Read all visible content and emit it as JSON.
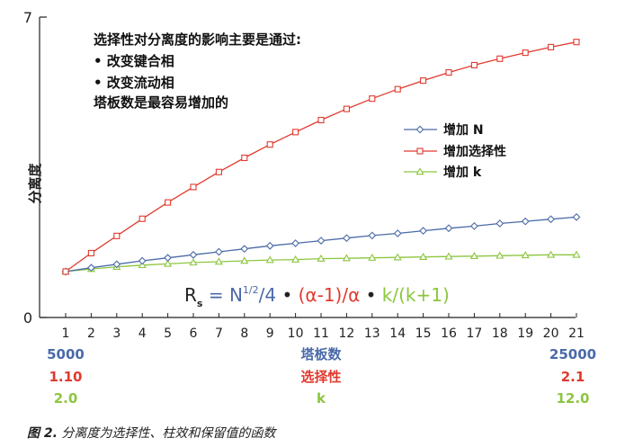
{
  "chart_data": {
    "type": "line",
    "title": "",
    "ylabel": "分离度",
    "ylim": [
      0,
      7
    ],
    "y_ticks": [
      "0",
      "7"
    ],
    "x": [
      1,
      2,
      3,
      4,
      5,
      6,
      7,
      8,
      9,
      10,
      11,
      12,
      13,
      14,
      15,
      16,
      17,
      18,
      19,
      20,
      21
    ],
    "x_tick_labels": [
      "1",
      "2",
      "3",
      "4",
      "5",
      "6",
      "7",
      "8",
      "9",
      "10",
      "11",
      "12",
      "13",
      "14",
      "15",
      "16",
      "17",
      "18",
      "19",
      "20",
      "21"
    ],
    "grid": false,
    "legend_position": "right",
    "series": [
      {
        "name": "增加 N",
        "color": "#4a6aa8",
        "marker": "diamond",
        "values": [
          1.07,
          1.16,
          1.24,
          1.32,
          1.39,
          1.46,
          1.53,
          1.6,
          1.67,
          1.73,
          1.79,
          1.85,
          1.91,
          1.96,
          2.02,
          2.08,
          2.13,
          2.19,
          2.24,
          2.29,
          2.34
        ]
      },
      {
        "name": "增加选择性",
        "color": "#e03a2e",
        "marker": "square",
        "values": [
          1.07,
          1.5,
          1.9,
          2.3,
          2.68,
          3.04,
          3.39,
          3.72,
          4.03,
          4.32,
          4.6,
          4.86,
          5.1,
          5.32,
          5.52,
          5.71,
          5.88,
          6.03,
          6.17,
          6.3,
          6.42
        ]
      },
      {
        "name": "增加 k",
        "color": "#8cc63f",
        "marker": "triangle",
        "values": [
          1.07,
          1.13,
          1.18,
          1.22,
          1.25,
          1.28,
          1.3,
          1.32,
          1.34,
          1.35,
          1.37,
          1.38,
          1.39,
          1.4,
          1.41,
          1.42,
          1.43,
          1.44,
          1.45,
          1.46,
          1.46
        ]
      }
    ],
    "annotation": {
      "lines": [
        "选择性对分离度的影响主要是通过:",
        "•   改变键合相",
        "•   改变流动相",
        "塔板数是最容易增加的"
      ]
    },
    "formula": {
      "r": "R",
      "r_sub": "s",
      "eq": " = ",
      "n": "N",
      "n_sup": "1/2",
      "n_rest": "/4",
      "dot": " • ",
      "alpha": "(α-1)/α",
      "k": "k/(k+1)",
      "color_r": "#222222",
      "color_n": "#4a6aa8",
      "color_alpha": "#e03a2e",
      "color_k": "#8cc63f"
    },
    "secondary_axes": [
      {
        "left": "5000",
        "center": "塔板数",
        "right": "25000",
        "color": "#4a6aa8"
      },
      {
        "left": "1.10",
        "center": "选择性",
        "right": "2.1",
        "color": "#e03a2e"
      },
      {
        "left": "2.0",
        "center": "k",
        "right": "12.0",
        "color": "#8cc63f"
      }
    ]
  },
  "caption": {
    "label": "图 2.",
    "text": " 分离度为选择性、柱效和保留值的函数"
  }
}
